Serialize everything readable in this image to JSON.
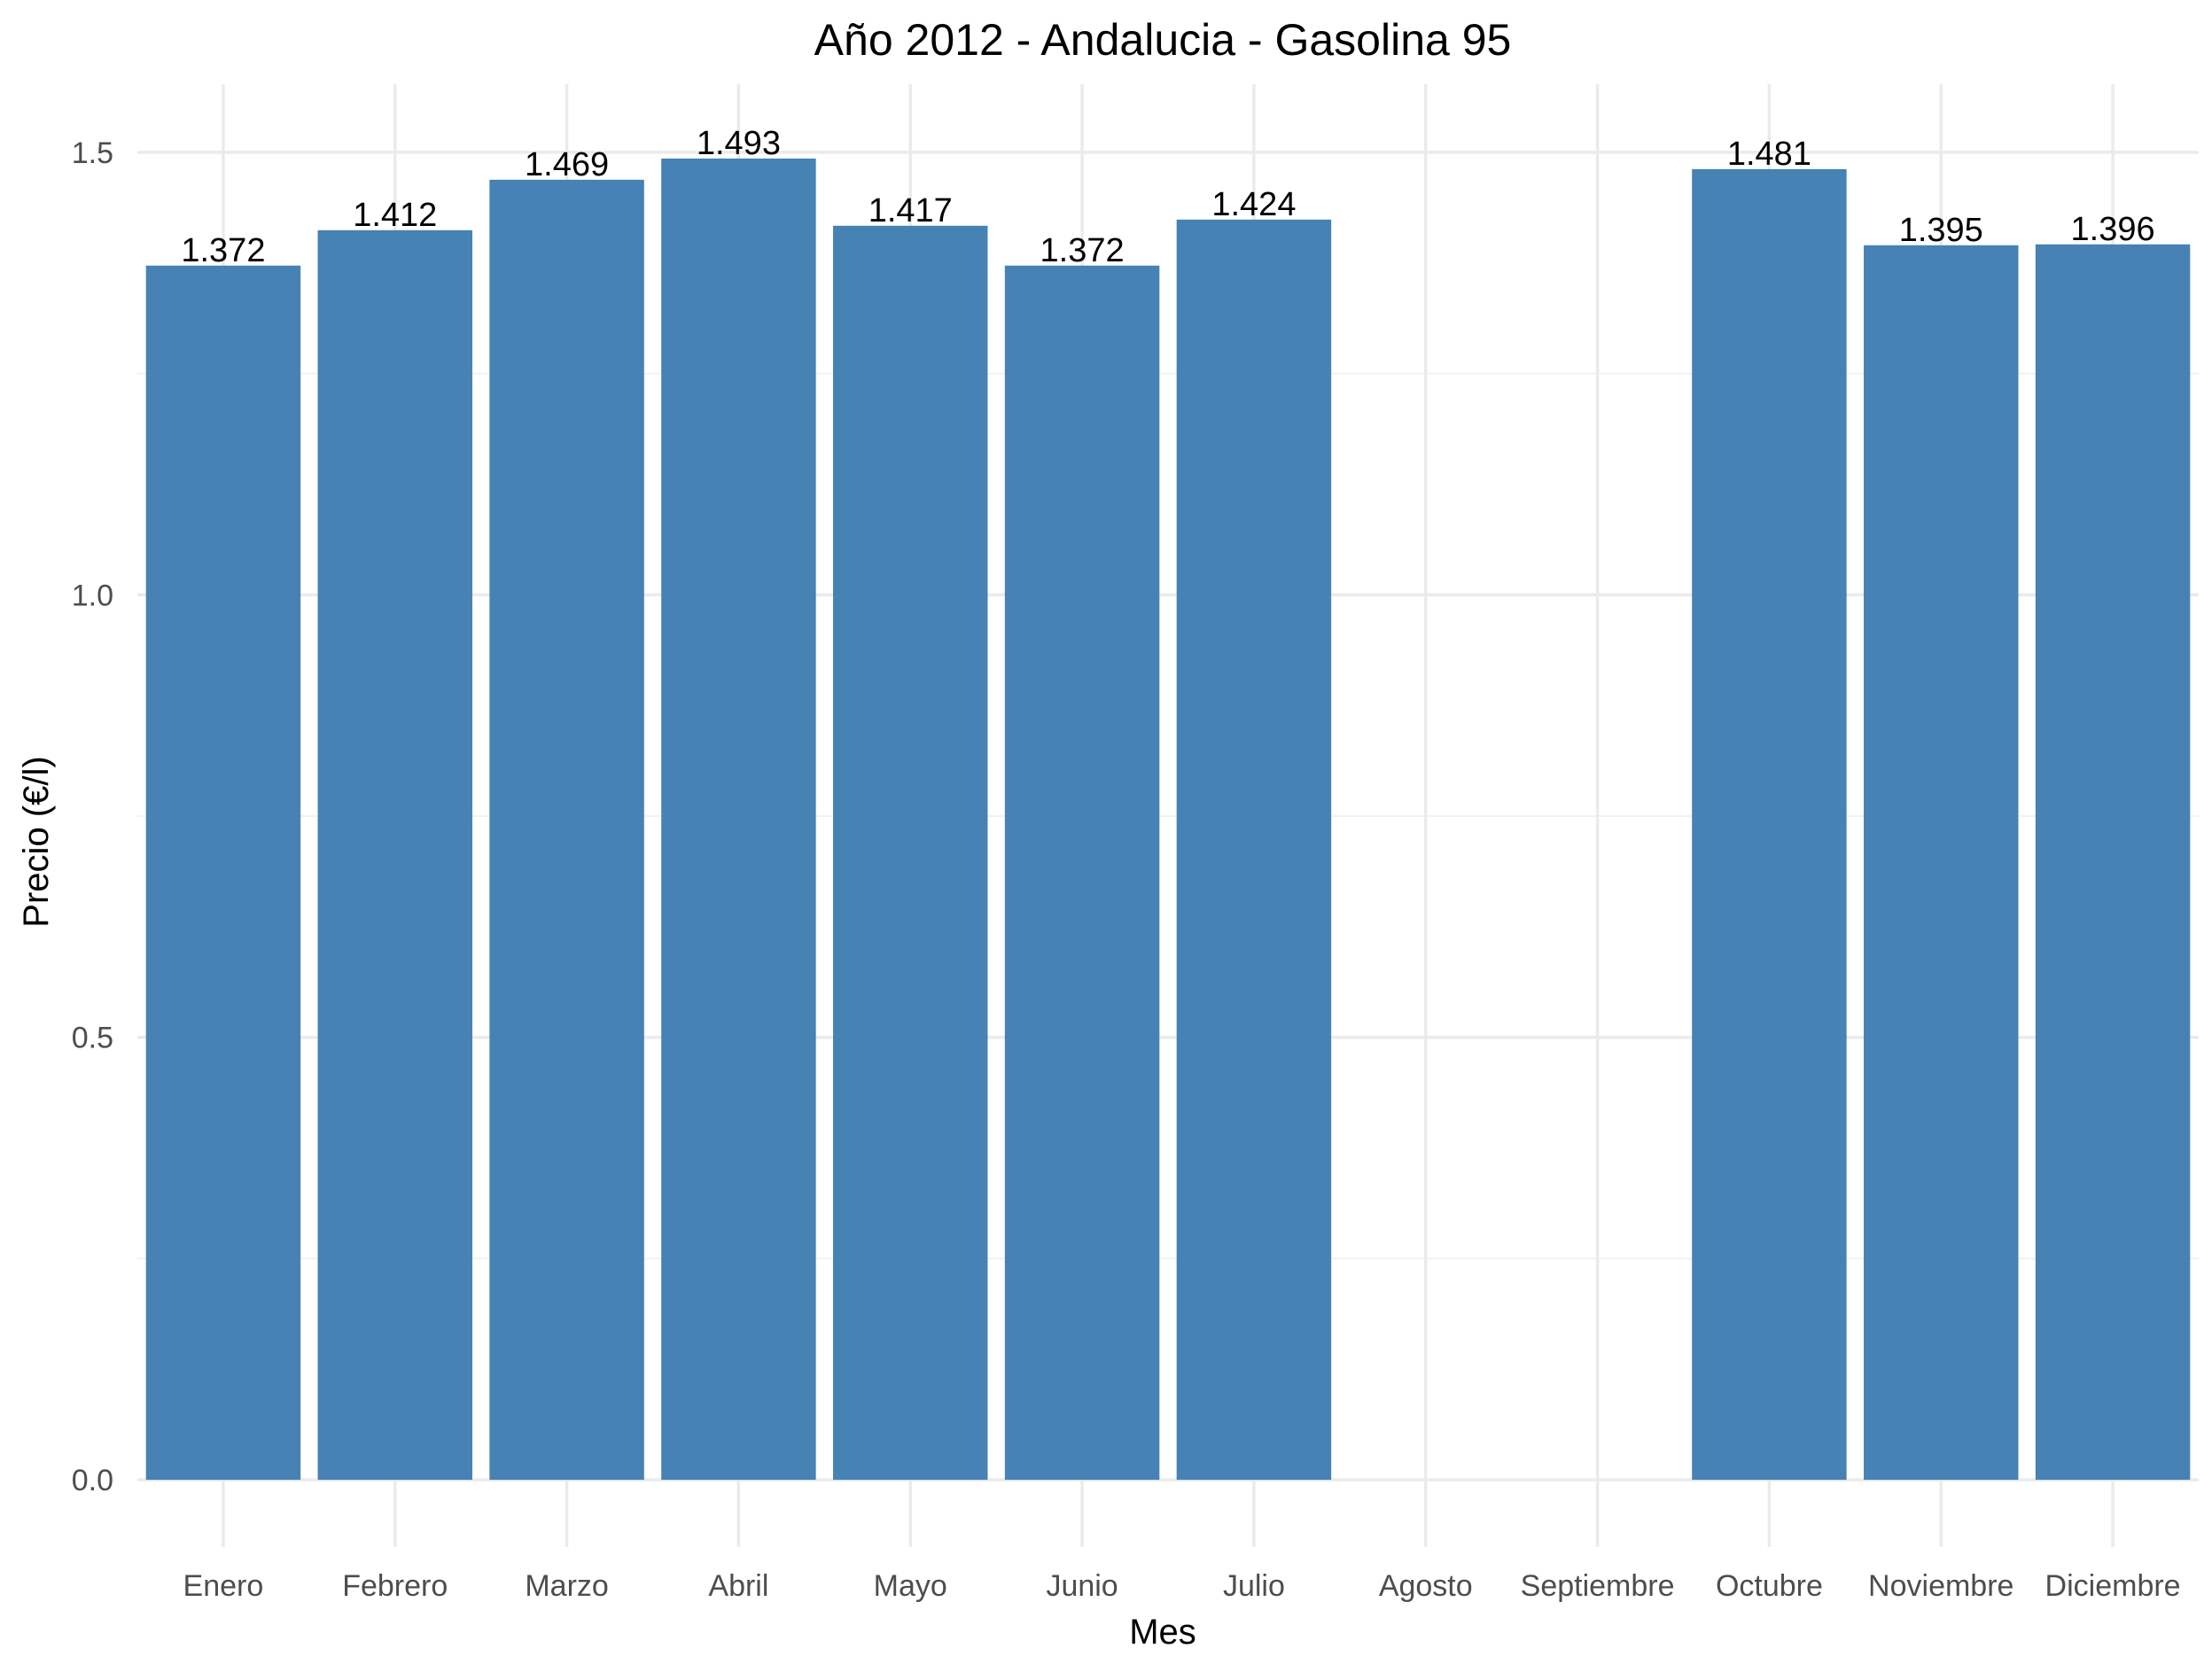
{
  "chart_data": {
    "type": "bar",
    "title": "Año 2012 - Andalucia - Gasolina 95",
    "xlabel": "Mes",
    "ylabel": "Precio (€/l)",
    "categories": [
      "Enero",
      "Febrero",
      "Marzo",
      "Abril",
      "Mayo",
      "Junio",
      "Julio",
      "Agosto",
      "Septiembre",
      "Octubre",
      "Noviembre",
      "Diciembre"
    ],
    "values": [
      1.372,
      1.412,
      1.469,
      1.493,
      1.417,
      1.372,
      1.424,
      null,
      null,
      1.481,
      1.395,
      1.396
    ],
    "data_labels": [
      "1.372",
      "1.412",
      "1.469",
      "1.493",
      "1.417",
      "1.372",
      "1.424",
      "",
      "",
      "1.481",
      "1.395",
      "1.396"
    ],
    "y_ticks": [
      0.0,
      0.5,
      1.0,
      1.5
    ],
    "y_tick_labels": [
      "0.0",
      "0.5",
      "1.0",
      "1.5"
    ],
    "ylim": [
      -0.076,
      1.577
    ],
    "grid": true,
    "legend": "none",
    "bar_color": "#4682b4",
    "background": "#ffffff"
  }
}
